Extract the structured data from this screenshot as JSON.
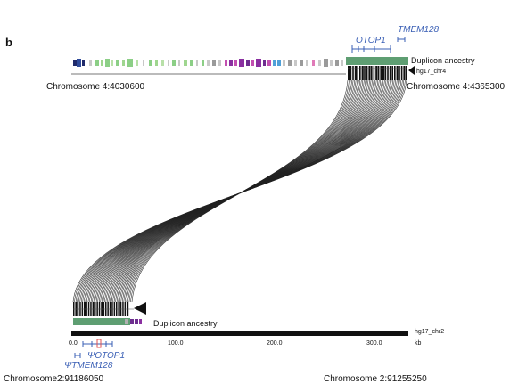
{
  "panel_label": "b",
  "colors": {
    "gene": "#3a5fb5",
    "ancestry": "#5e9e72",
    "segment": "#111111",
    "link": "#222222",
    "pseudo_box": "#e05050"
  },
  "top": {
    "genes": [
      "OTOP1",
      "TMEM128"
    ],
    "left_label": "Chromosome 4:4030600",
    "right_label": "Chromosome 4:4365300",
    "ancestry_label": "Duplicon ancestry",
    "track_label": "hg17_chr4"
  },
  "bottom": {
    "ancestry_label": "Duplicon ancestry",
    "track_label": "hg17_chr2",
    "axis_ticks": [
      "0.0",
      "100.0",
      "200.0",
      "300.0"
    ],
    "axis_unit": "kb",
    "genes": [
      "ΨOTOP1",
      "ΨTMEM128"
    ],
    "left_label": "Chromosome2:91186050",
    "right_label": "Chromosome 2:91255250"
  },
  "icons": {
    "track_arrow": "triangle-left-icon"
  }
}
